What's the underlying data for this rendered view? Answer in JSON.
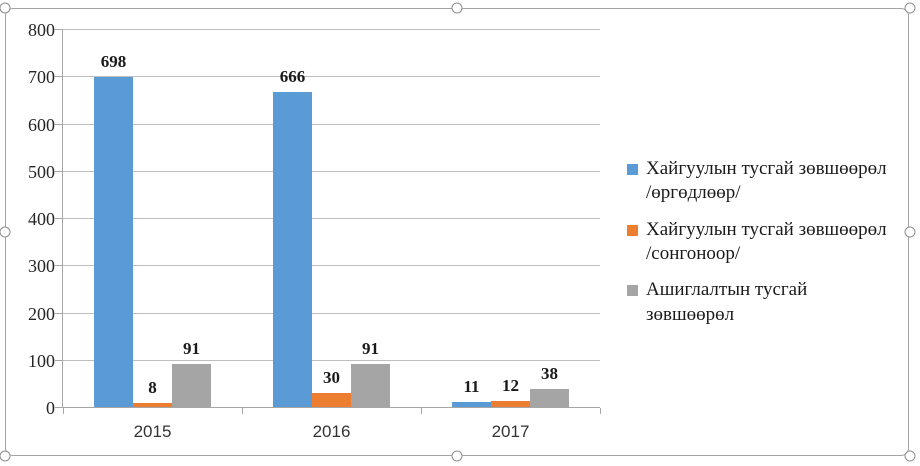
{
  "chart_data": {
    "type": "bar",
    "title": "",
    "xlabel": "",
    "ylabel": "",
    "categories": [
      "2015",
      "2016",
      "2017"
    ],
    "series": [
      {
        "name": "Хайгуулын тусгай зөвшөөрөл /өргөдлөөр/",
        "color": "#5B9BD5",
        "values": [
          698,
          666,
          11
        ]
      },
      {
        "name": "Хайгуулын тусгай зөвшөөрөл /сонгоноор/",
        "color": "#ED7D31",
        "values": [
          8,
          30,
          12
        ]
      },
      {
        "name": "Ашиглалтын тусгай зөвшөөрөл",
        "color": "#A5A5A5",
        "values": [
          91,
          91,
          38
        ]
      }
    ],
    "ylim": [
      0,
      800
    ],
    "ytick_step": 100,
    "yticks": [
      0,
      100,
      200,
      300,
      400,
      500,
      600,
      700,
      800
    ],
    "grid": true,
    "data_labels": true,
    "legend_position": "right"
  },
  "legend": {
    "items": [
      {
        "lines": [
          "Хайгуулын тусгай зөвшөөрөл",
          "/өргөдлөөр/"
        ],
        "color": "#5B9BD5"
      },
      {
        "lines": [
          "Хайгуулын тусгай зөвшөөрөл",
          "/сонгоноор/"
        ],
        "color": "#ED7D31"
      },
      {
        "lines": [
          "Ашиглалтын тусгай зөвшөөрөл"
        ],
        "color": "#A5A5A5"
      }
    ]
  },
  "colors": {
    "series_blue": "#5B9BD5",
    "series_orange": "#ED7D31",
    "series_gray": "#A5A5A5",
    "gridline": "#bfbfbf",
    "axis_line": "#a6a6a6",
    "frame_border": "#a3a3a3"
  }
}
